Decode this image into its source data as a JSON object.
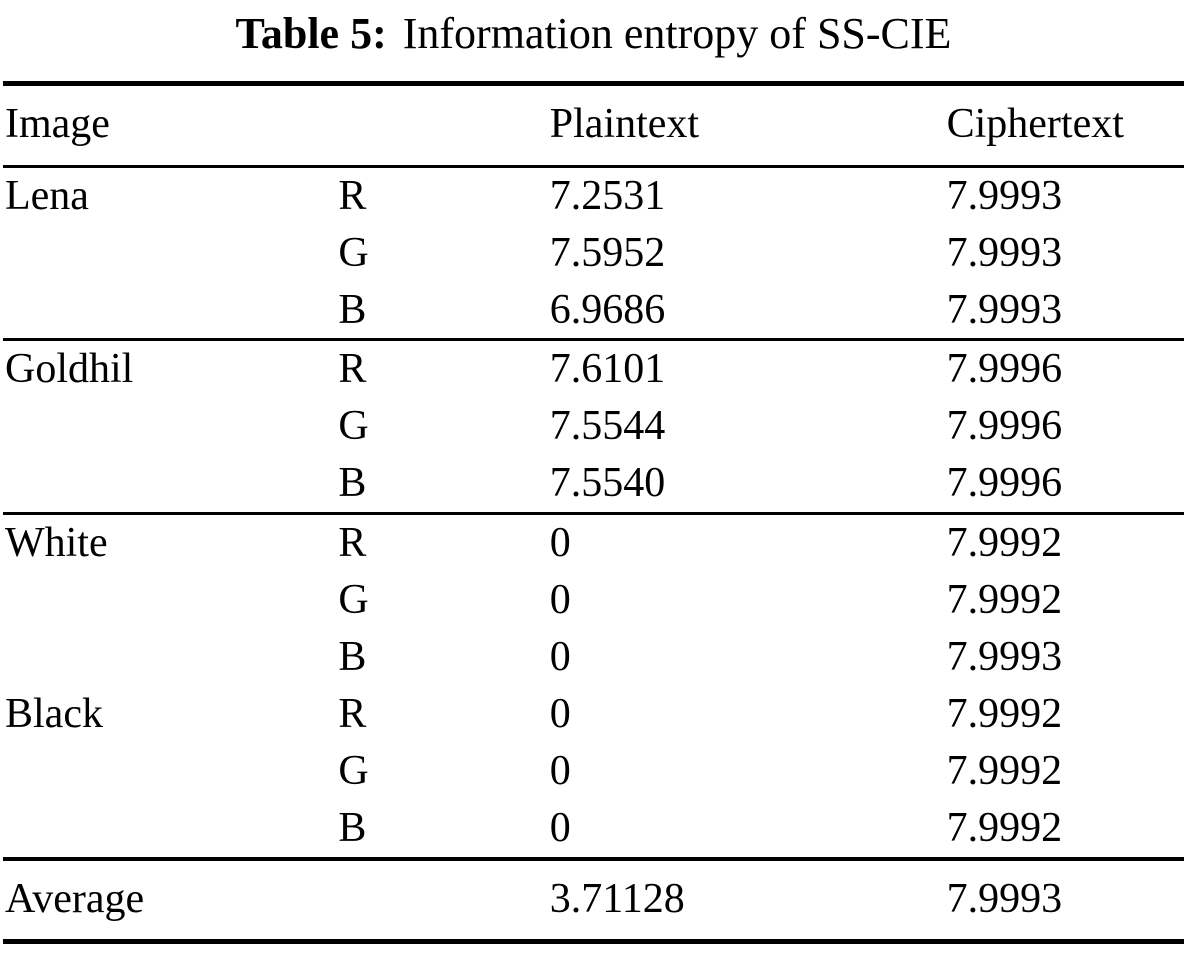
{
  "page": {
    "background_color": "#ffffff",
    "text_color": "#000000"
  },
  "caption": {
    "label": "Table 5:",
    "title": "Information entropy of SS-CIE"
  },
  "table": {
    "headers": {
      "image": "Image",
      "channel": "",
      "plaintext": "Plaintext",
      "ciphertext": "Ciphertext"
    },
    "groups": [
      {
        "image": "Lena",
        "rows": [
          {
            "channel": "R",
            "plaintext": "7.2531",
            "ciphertext": "7.9993"
          },
          {
            "channel": "G",
            "plaintext": "7.5952",
            "ciphertext": "7.9993"
          },
          {
            "channel": "B",
            "plaintext": "6.9686",
            "ciphertext": "7.9993"
          }
        ]
      },
      {
        "image": "Goldhil",
        "rows": [
          {
            "channel": "R",
            "plaintext": "7.6101",
            "ciphertext": "7.9996"
          },
          {
            "channel": "G",
            "plaintext": "7.5544",
            "ciphertext": "7.9996"
          },
          {
            "channel": "B",
            "plaintext": "7.5540",
            "ciphertext": "7.9996"
          }
        ]
      },
      {
        "image": "White",
        "rows": [
          {
            "channel": "R",
            "plaintext": "0",
            "ciphertext": "7.9992"
          },
          {
            "channel": "G",
            "plaintext": "0",
            "ciphertext": "7.9992"
          },
          {
            "channel": "B",
            "plaintext": "0",
            "ciphertext": "7.9993"
          }
        ]
      },
      {
        "image": "Black",
        "rows": [
          {
            "channel": "R",
            "plaintext": "0",
            "ciphertext": "7.9992"
          },
          {
            "channel": "G",
            "plaintext": "0",
            "ciphertext": "7.9992"
          },
          {
            "channel": "B",
            "plaintext": "0",
            "ciphertext": "7.9992"
          }
        ]
      }
    ],
    "summary": {
      "image": "Average",
      "plaintext": "3.71128",
      "ciphertext": "7.9993"
    }
  }
}
